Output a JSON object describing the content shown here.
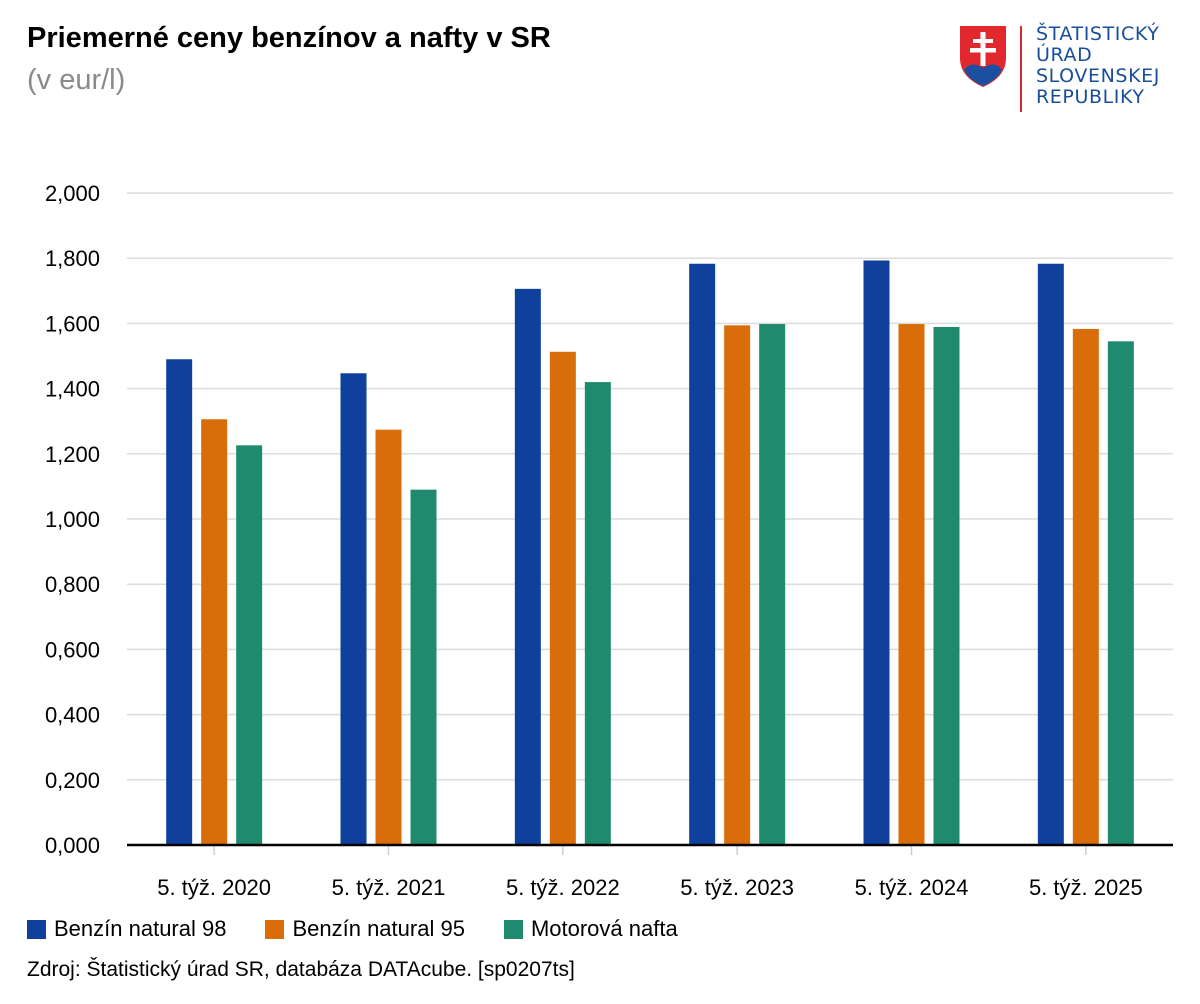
{
  "header": {
    "title": "Priemerné ceny benzínov a nafty v SR",
    "subtitle": "(v eur/l)"
  },
  "logo": {
    "lines": [
      "ŠTATISTICKÝ",
      "ÚRAD",
      "SLOVENSKEJ",
      "REPUBLIKY"
    ],
    "text_color": "#1a4e9a"
  },
  "chart_data": {
    "type": "bar",
    "title": "Priemerné ceny benzínov a nafty v SR",
    "subtitle": "(v eur/l)",
    "categories": [
      "5. týž. 2020",
      "5. týž. 2021",
      "5. týž. 2022",
      "5. týž. 2023",
      "5. týž. 2024",
      "5. týž. 2025"
    ],
    "series": [
      {
        "name": "Benzín natural 98",
        "color": "#0e409c",
        "values": [
          1.49,
          1.447,
          1.706,
          1.783,
          1.793,
          1.783
        ]
      },
      {
        "name": "Benzín natural 95",
        "color": "#d86d0a",
        "values": [
          1.306,
          1.274,
          1.513,
          1.594,
          1.598,
          1.583
        ]
      },
      {
        "name": "Motorová nafta",
        "color": "#1f8a6e",
        "values": [
          1.226,
          1.09,
          1.42,
          1.598,
          1.589,
          1.545
        ]
      }
    ],
    "yticks": [
      "0,000",
      "0,200",
      "0,400",
      "0,600",
      "0,800",
      "1,000",
      "1,200",
      "1,400",
      "1,600",
      "1,800",
      "2,000"
    ],
    "ylim": [
      0,
      2
    ],
    "grid": true,
    "legend_position": "bottom-left"
  },
  "footer": {
    "source": "Zdroj: Štatistický úrad SR, databáza DATAcube. [sp0207ts]"
  }
}
